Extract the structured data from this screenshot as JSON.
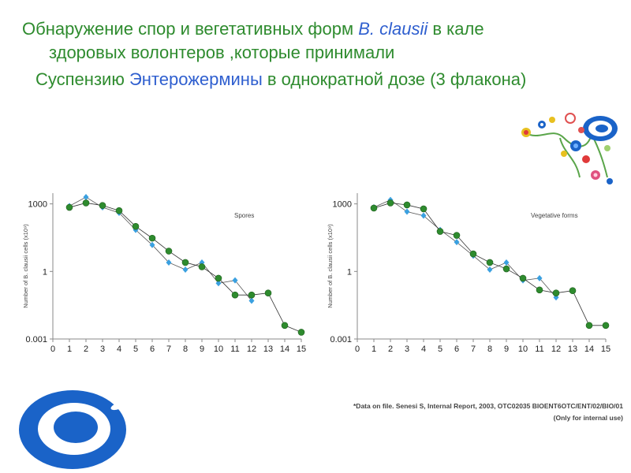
{
  "title": {
    "line1_a": "Обнаружение спор и вегетативных форм ",
    "line1_b": "B. clausii",
    "line1_c": " в кале",
    "line2": "здоровых волонтеров ,которые принимали",
    "line3_a": "Cуспензию ",
    "line3_b": "Энтерожермины",
    "line3_c": " в однократной дозе (3 флакона)"
  },
  "footnote": {
    "line1": "*Data on file. Senesi S, Internal Report, 2003, OTC02035 BIOENT6OTC/ENT/02/BIO/01",
    "line2": "(Only for internal use)"
  },
  "colors": {
    "green_series": "#2e8b2e",
    "blue_series": "#3aa0e0",
    "title_green": "#2e8b2e",
    "title_blue": "#2f5fcf"
  },
  "chart_data": [
    {
      "type": "line",
      "annotation": "Spores",
      "ylabel": "Number of B. clausii cells (x10⁹)",
      "y_scale": "log",
      "ylim": [
        0.001,
        3000
      ],
      "yticks": [
        "1000",
        "1",
        "0.001"
      ],
      "x": [
        0,
        1,
        2,
        3,
        4,
        5,
        6,
        7,
        8,
        9,
        10,
        11,
        12,
        13,
        14,
        15
      ],
      "series": [
        {
          "marker": "circle",
          "color": "green",
          "points": [
            [
              1,
              700
            ],
            [
              2,
              1100
            ],
            [
              3,
              850
            ],
            [
              4,
              500
            ],
            [
              5,
              100
            ],
            [
              6,
              30
            ],
            [
              7,
              8
            ],
            [
              8,
              2.5
            ],
            [
              9,
              1.6
            ],
            [
              10,
              0.5
            ],
            [
              11,
              0.09
            ],
            [
              12,
              0.09
            ],
            [
              13,
              0.11
            ],
            [
              14,
              0.004
            ],
            [
              15,
              0.002
            ]
          ]
        },
        {
          "marker": "diamond",
          "color": "blue",
          "points": [
            [
              1,
              800
            ],
            [
              2,
              2000
            ],
            [
              3,
              700
            ],
            [
              4,
              400
            ],
            [
              5,
              70
            ],
            [
              6,
              15
            ],
            [
              7,
              2.5
            ],
            [
              8,
              1.2
            ],
            [
              9,
              2.5
            ],
            [
              10,
              0.3
            ],
            [
              11,
              0.4
            ],
            [
              12,
              0.05
            ]
          ]
        }
      ]
    },
    {
      "type": "line",
      "annotation": "Vegetative forms",
      "ylabel": "Number of B. clausii cells (x10⁹)",
      "y_scale": "log",
      "ylim": [
        0.001,
        3000
      ],
      "yticks": [
        "1000",
        "1",
        "0.001"
      ],
      "x": [
        0,
        1,
        2,
        3,
        4,
        5,
        6,
        7,
        8,
        9,
        10,
        11,
        12,
        13,
        14,
        15
      ],
      "series": [
        {
          "marker": "circle",
          "color": "green",
          "points": [
            [
              1,
              650
            ],
            [
              2,
              1100
            ],
            [
              3,
              900
            ],
            [
              4,
              600
            ],
            [
              5,
              60
            ],
            [
              6,
              40
            ],
            [
              7,
              6
            ],
            [
              8,
              2.5
            ],
            [
              9,
              1.3
            ],
            [
              10,
              0.5
            ],
            [
              11,
              0.15
            ],
            [
              12,
              0.11
            ],
            [
              13,
              0.14
            ],
            [
              14,
              0.004
            ],
            [
              15,
              0.004
            ]
          ]
        },
        {
          "marker": "diamond",
          "color": "blue",
          "points": [
            [
              1,
              700
            ],
            [
              2,
              1500
            ],
            [
              3,
              450
            ],
            [
              4,
              300
            ],
            [
              5,
              70
            ],
            [
              6,
              20
            ],
            [
              7,
              5
            ],
            [
              8,
              1.2
            ],
            [
              9,
              2.5
            ],
            [
              10,
              0.4
            ],
            [
              11,
              0.5
            ],
            [
              12,
              0.07
            ]
          ]
        }
      ]
    }
  ]
}
